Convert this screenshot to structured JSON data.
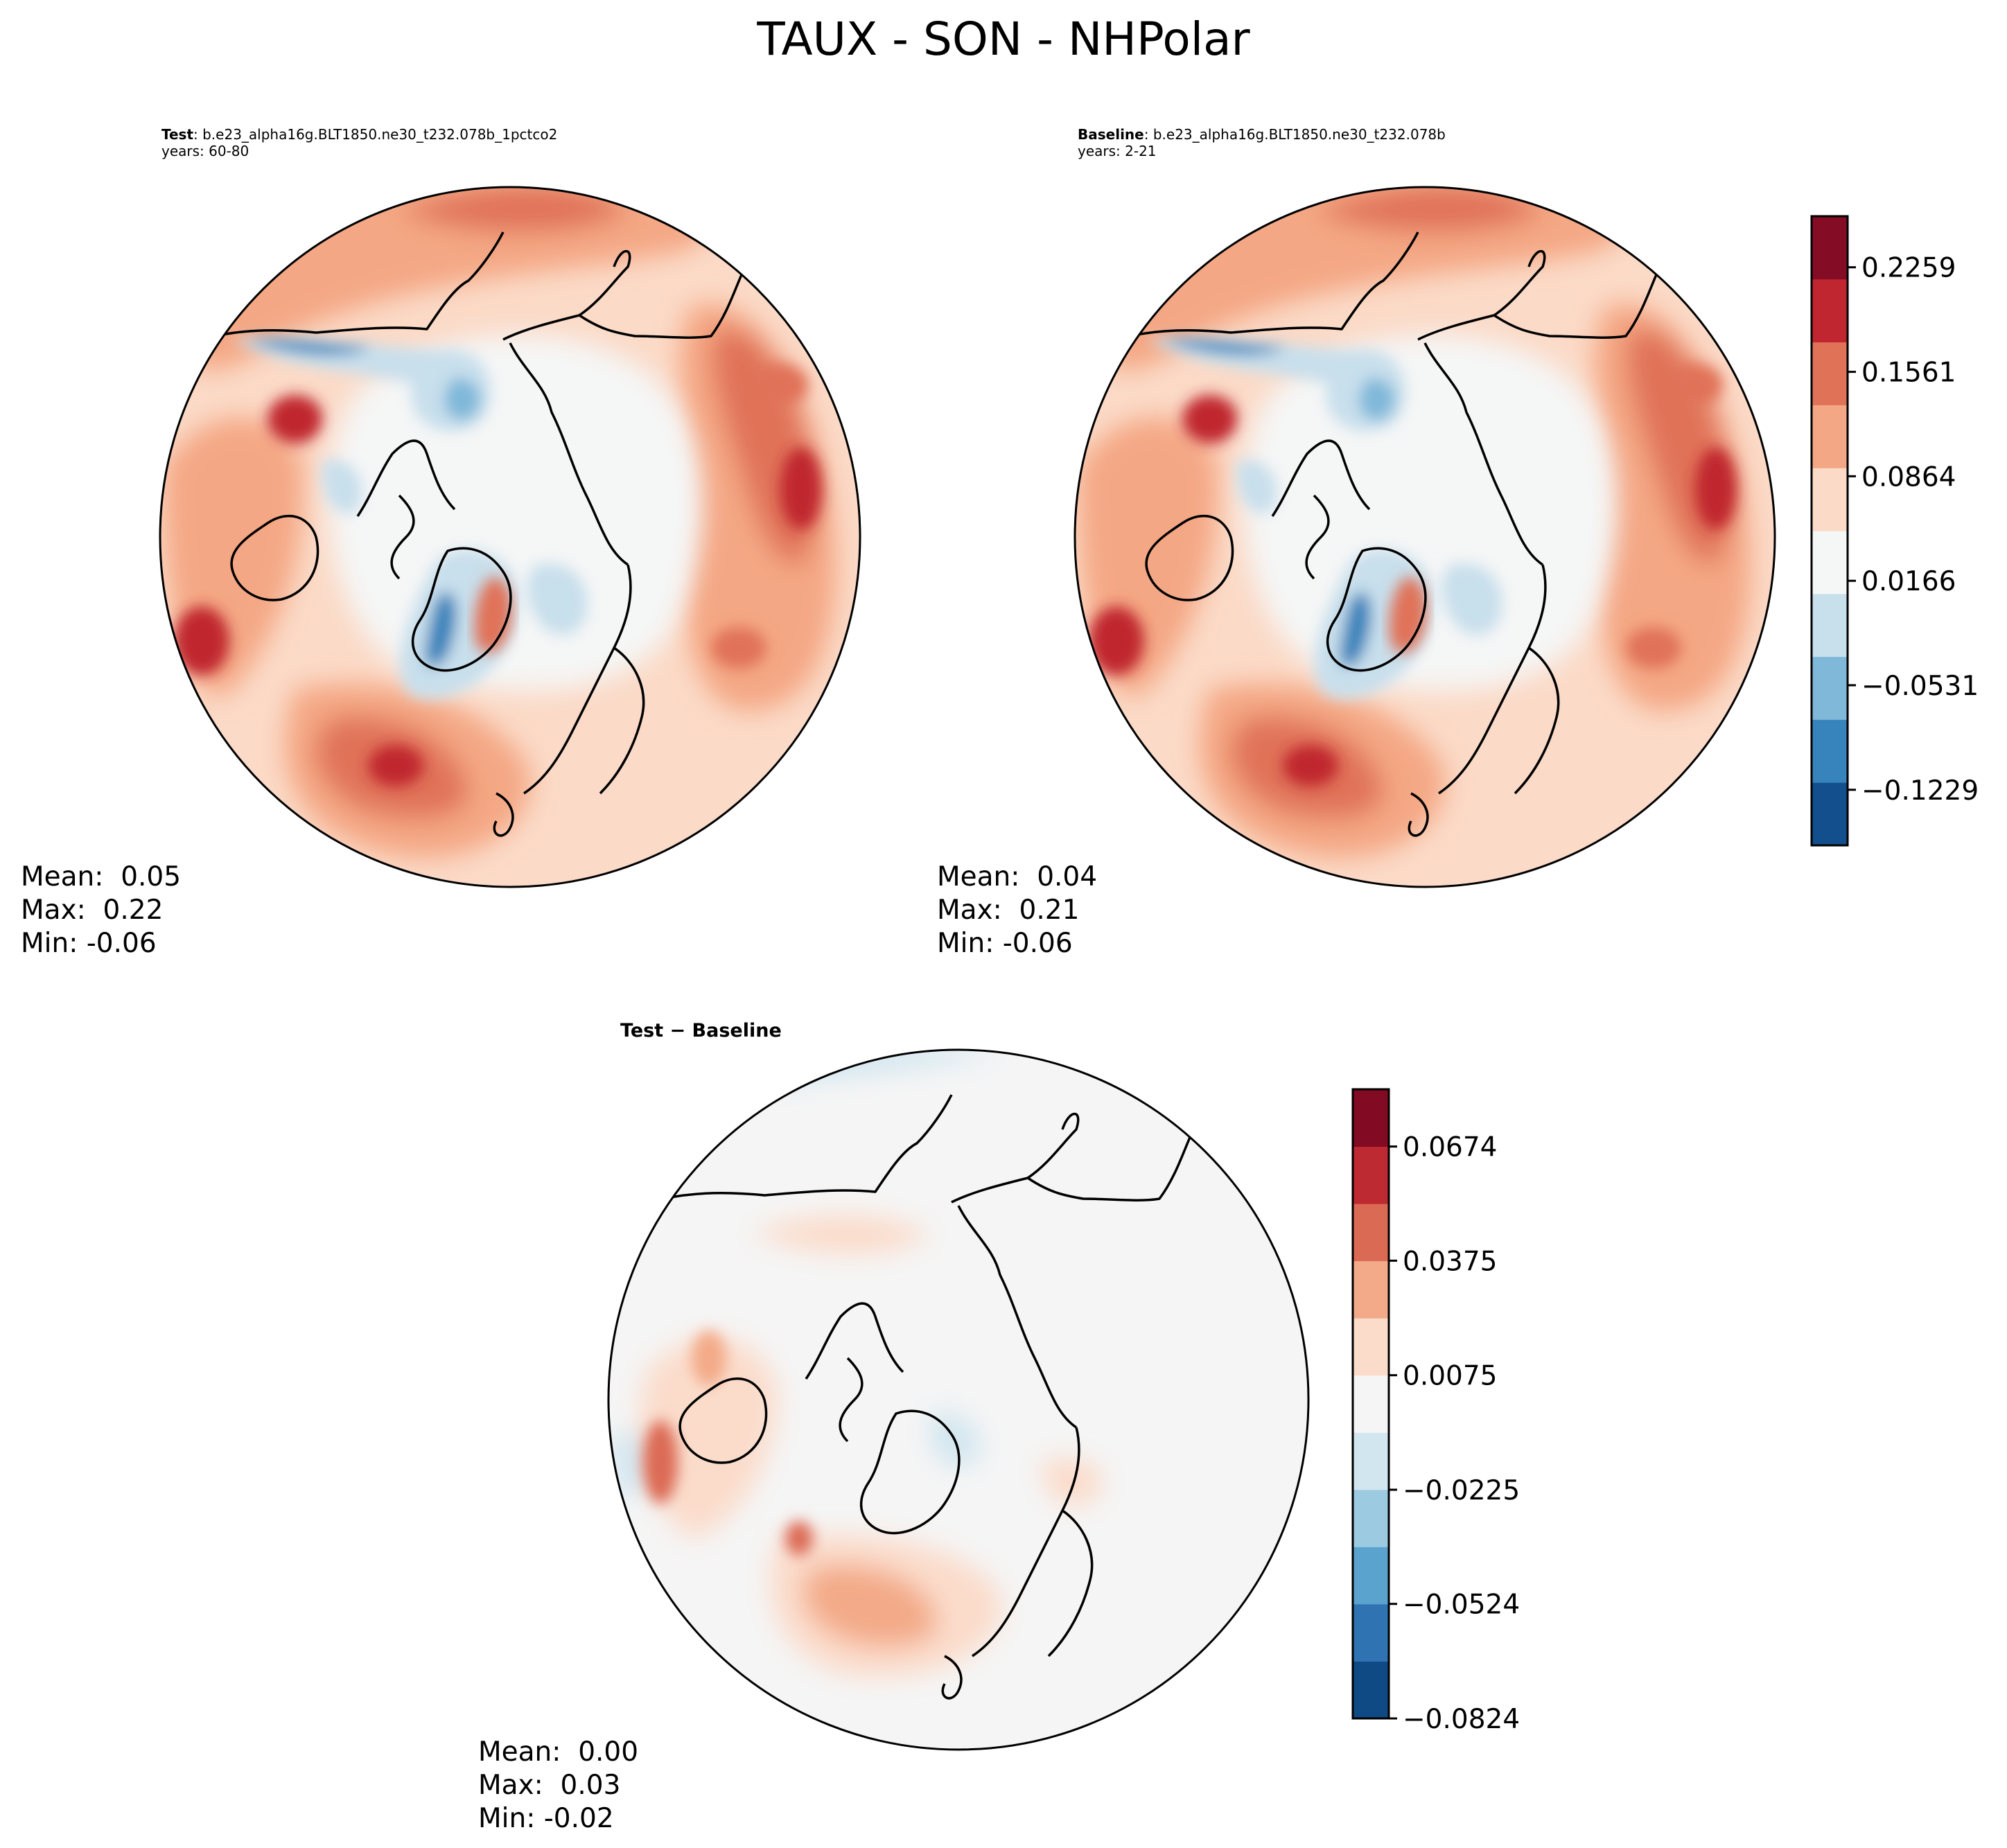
{
  "figure": {
    "title": "TAUX - SON - NHPolar"
  },
  "panels": {
    "test": {
      "label": "Test",
      "case": ": b.e23_alpha16g.BLT1850.ne30_t232.078b_1pctco2",
      "years": "years: 60-80",
      "mean": "Mean:  0.05",
      "max": "Max:  0.22",
      "min": "Min: -0.06"
    },
    "baseline": {
      "label": "Baseline",
      "case": ": b.e23_alpha16g.BLT1850.ne30_t232.078b",
      "years": "years: 2-21",
      "mean": "Mean:  0.04",
      "max": "Max:  0.21",
      "min": "Min: -0.06"
    },
    "diff": {
      "title": "Test − Baseline",
      "mean": "Mean:  0.00",
      "max": "Max:  0.03",
      "min": "Min: -0.02"
    }
  },
  "chart_data": [
    {
      "type": "heatmap",
      "name": "test",
      "projection": "north-polar-stereographic",
      "colormap": "RdBu_r"
    },
    {
      "type": "heatmap",
      "name": "baseline",
      "projection": "north-polar-stereographic",
      "colormap": "RdBu_r"
    },
    {
      "type": "heatmap",
      "name": "difference",
      "projection": "north-polar-stereographic",
      "colormap": "RdBu_r"
    }
  ],
  "colorbars": {
    "main": {
      "range": [
        -0.16,
        0.26
      ],
      "colors": [
        "#134f8c",
        "#3783bb",
        "#7fb8d9",
        "#c8dfec",
        "#f5f6f6",
        "#fbdac7",
        "#f4a784",
        "#e07258",
        "#c0262f",
        "#840c25"
      ],
      "ticks": [
        {
          "value": 0.2259,
          "label": "0.2259"
        },
        {
          "value": 0.1561,
          "label": "0.1561"
        },
        {
          "value": 0.0864,
          "label": "0.0864"
        },
        {
          "value": 0.0166,
          "label": "0.0166"
        },
        {
          "value": -0.0531,
          "label": "−0.0531"
        },
        {
          "value": -0.1229,
          "label": "−0.1229"
        }
      ]
    },
    "diff": {
      "range": [
        -0.0824,
        0.0824
      ],
      "colors": [
        "#0f4a85",
        "#2f73b2",
        "#5ba3cf",
        "#9ccae1",
        "#d2e6f0",
        "#f5f5f5",
        "#fbdccb",
        "#f3aa88",
        "#db6a55",
        "#bd2a31",
        "#820a23"
      ],
      "ticks": [
        {
          "value": 0.0674,
          "label": "0.0674"
        },
        {
          "value": 0.0375,
          "label": "0.0375"
        },
        {
          "value": 0.0075,
          "label": "0.0075"
        },
        {
          "value": -0.0225,
          "label": "−0.0225"
        },
        {
          "value": -0.0524,
          "label": "−0.0524"
        },
        {
          "value": -0.0824,
          "label": "−0.0824"
        }
      ]
    }
  }
}
